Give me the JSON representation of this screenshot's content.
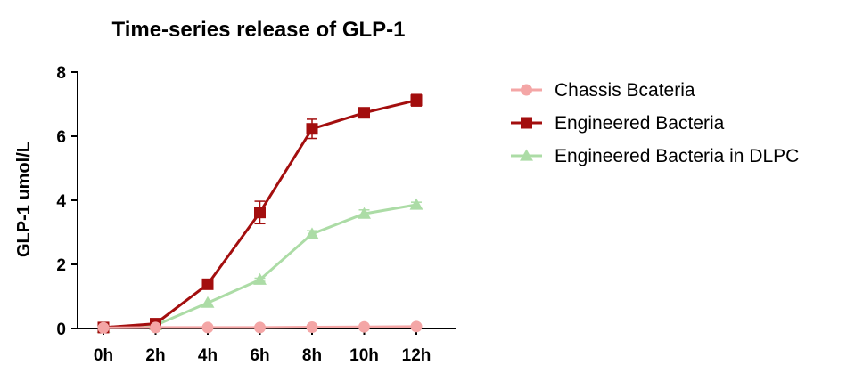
{
  "chart_data": {
    "type": "line",
    "title": "Time-series release of GLP-1",
    "xlabel": "",
    "ylabel": "GLP-1 umol/L",
    "categories": [
      "0h",
      "2h",
      "4h",
      "6h",
      "8h",
      "10h",
      "12h"
    ],
    "ylim": [
      0,
      8
    ],
    "yticks": [
      0,
      2,
      4,
      6,
      8
    ],
    "grid": false,
    "legend_position": "right",
    "series": [
      {
        "name": "Chassis Bcateria",
        "marker": "circle",
        "color": "#f4a6a6",
        "values": [
          0.02,
          0.03,
          0.03,
          0.03,
          0.04,
          0.05,
          0.06
        ],
        "errors": [
          0,
          0,
          0,
          0,
          0,
          0,
          0
        ]
      },
      {
        "name": "Engineered Bacteria",
        "marker": "square",
        "color": "#a30e0e",
        "values": [
          0.03,
          0.15,
          1.38,
          3.62,
          6.23,
          6.73,
          7.12
        ],
        "errors": [
          0,
          0,
          0.05,
          0.35,
          0.3,
          0.08,
          0.18
        ]
      },
      {
        "name": "Engineered Bacteria in DLPC",
        "marker": "triangle",
        "color": "#acdca6",
        "values": [
          0.02,
          0.1,
          0.8,
          1.52,
          2.95,
          3.58,
          3.86
        ],
        "errors": [
          0,
          0,
          0,
          0.05,
          0.1,
          0.12,
          0.08
        ]
      }
    ]
  }
}
